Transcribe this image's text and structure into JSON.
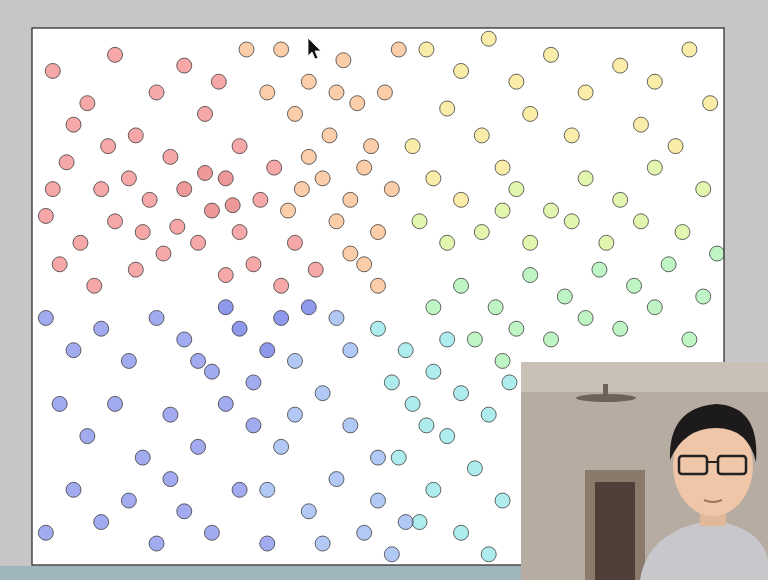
{
  "chart_data": {
    "type": "scatter",
    "marker": "circle",
    "grid": false,
    "tick_labels": false,
    "xlim": [
      0,
      100
    ],
    "ylim": [
      0,
      100
    ],
    "x": [
      3,
      8,
      12,
      15,
      5,
      10,
      18,
      22,
      25,
      20,
      14,
      2,
      7,
      12,
      17,
      22,
      26,
      28,
      30,
      24,
      19,
      15,
      9,
      4,
      30,
      33,
      35,
      32,
      28,
      38,
      36,
      6,
      11,
      27,
      3,
      21,
      25,
      29,
      16,
      41,
      36,
      40,
      45,
      38,
      43,
      47,
      34,
      49,
      42,
      46,
      50,
      44,
      48,
      52,
      40,
      37,
      51,
      53,
      31,
      46,
      50,
      39,
      44,
      48,
      57,
      62,
      66,
      70,
      75,
      80,
      85,
      90,
      95,
      98,
      60,
      65,
      72,
      78,
      55,
      68,
      58,
      62,
      88,
      93,
      70,
      75,
      80,
      85,
      90,
      97,
      65,
      72,
      78,
      83,
      88,
      60,
      56,
      94,
      68,
      62,
      67,
      72,
      77,
      82,
      87,
      92,
      97,
      70,
      75,
      80,
      85,
      90,
      95,
      64,
      58,
      99,
      68,
      50,
      54,
      58,
      62,
      66,
      60,
      55,
      52,
      64,
      68,
      58,
      62,
      66,
      56,
      60,
      69,
      53,
      57,
      38,
      42,
      46,
      50,
      44,
      40,
      48,
      52,
      36,
      42,
      46,
      38,
      50,
      54,
      34,
      44,
      2,
      6,
      10,
      14,
      18,
      22,
      26,
      30,
      34,
      28,
      36,
      40,
      4,
      8,
      12,
      16,
      20,
      24,
      28,
      32,
      6,
      10,
      14,
      18,
      22,
      26,
      30,
      34,
      2,
      20,
      24,
      32
    ],
    "values": [
      92,
      86,
      95,
      80,
      75,
      70,
      88,
      93,
      84,
      76,
      72,
      65,
      60,
      64,
      68,
      70,
      66,
      72,
      78,
      60,
      58,
      55,
      52,
      56,
      62,
      68,
      74,
      56,
      54,
      60,
      52,
      82,
      78,
      90,
      70,
      63,
      73,
      67,
      62,
      55,
      96,
      90,
      94,
      84,
      80,
      86,
      88,
      78,
      72,
      68,
      62,
      64,
      56,
      70,
      76,
      66,
      88,
      96,
      96,
      58,
      52,
      70,
      88,
      74,
      96,
      92,
      98,
      90,
      95,
      88,
      93,
      90,
      96,
      86,
      85,
      80,
      84,
      80,
      78,
      74,
      72,
      68,
      82,
      78,
      70,
      66,
      72,
      68,
      74,
      70,
      62,
      60,
      64,
      60,
      64,
      60,
      64,
      62,
      66,
      52,
      48,
      54,
      50,
      55,
      52,
      56,
      50,
      44,
      42,
      46,
      44,
      48,
      42,
      42,
      48,
      58,
      38,
      44,
      40,
      36,
      32,
      28,
      24,
      30,
      34,
      18,
      12,
      14,
      6,
      2,
      8,
      42,
      34,
      20,
      26,
      38,
      32,
      26,
      20,
      16,
      10,
      6,
      2,
      22,
      4,
      40,
      28,
      12,
      8,
      14,
      46,
      46,
      40,
      44,
      38,
      46,
      42,
      36,
      44,
      40,
      48,
      46,
      48,
      30,
      24,
      30,
      20,
      28,
      22,
      30,
      26,
      14,
      8,
      12,
      4,
      10,
      6,
      14,
      4,
      6,
      16,
      38,
      34
    ],
    "colors": [
      "#f07272",
      "#f07272",
      "#f07272",
      "#f07272",
      "#f07272",
      "#f07272",
      "#f07272",
      "#f07272",
      "#f07272",
      "#f07272",
      "#f07272",
      "#f07272",
      "#f07272",
      "#f07272",
      "#f07272",
      "#e45a5a",
      "#e45a5a",
      "#e45a5a",
      "#f07272",
      "#f07272",
      "#f07272",
      "#f07272",
      "#f07272",
      "#f07272",
      "#f07272",
      "#f07272",
      "#f07272",
      "#f07272",
      "#f07272",
      "#f07272",
      "#f07272",
      "#f07272",
      "#f07272",
      "#f07272",
      "#f07272",
      "#f07272",
      "#e45a5a",
      "#e45a5a",
      "#f07272",
      "#f07272",
      "#f8ae74",
      "#f8ae74",
      "#f8ae74",
      "#f8ae74",
      "#f8ae74",
      "#f8ae74",
      "#f8ae74",
      "#f8ae74",
      "#f8ae74",
      "#f8ae74",
      "#f8ae74",
      "#f8ae74",
      "#f8ae74",
      "#f8ae74",
      "#f8ae74",
      "#f8ae74",
      "#f8ae74",
      "#f8ae74",
      "#f8ae74",
      "#f8ae74",
      "#f8ae74",
      "#f8ae74",
      "#f8ae74",
      "#f8ae74",
      "#f6e274",
      "#f6e274",
      "#f6e274",
      "#f6e274",
      "#f6e274",
      "#f6e274",
      "#f6e274",
      "#f6e274",
      "#f6e274",
      "#f6e274",
      "#f6e274",
      "#f6e274",
      "#f6e274",
      "#f6e274",
      "#f6e274",
      "#f6e274",
      "#f6e274",
      "#f6e274",
      "#f6e274",
      "#f6e274",
      "#d2f07e",
      "#d2f07e",
      "#d2f07e",
      "#d2f07e",
      "#d2f07e",
      "#d2f07e",
      "#d2f07e",
      "#d2f07e",
      "#d2f07e",
      "#d2f07e",
      "#d2f07e",
      "#d2f07e",
      "#d2f07e",
      "#d2f07e",
      "#d2f07e",
      "#98eea2",
      "#98eea2",
      "#98eea2",
      "#98eea2",
      "#98eea2",
      "#98eea2",
      "#98eea2",
      "#98eea2",
      "#98eea2",
      "#98eea2",
      "#98eea2",
      "#98eea2",
      "#98eea2",
      "#98eea2",
      "#98eea2",
      "#98eea2",
      "#98eea2",
      "#98eea2",
      "#7ee0e4",
      "#7ee0e4",
      "#7ee0e4",
      "#7ee0e4",
      "#7ee0e4",
      "#7ee0e4",
      "#7ee0e4",
      "#7ee0e4",
      "#7ee0e4",
      "#7ee0e4",
      "#7ee0e4",
      "#7ee0e4",
      "#7ee0e4",
      "#7ee0e4",
      "#7ee0e4",
      "#7ee0e4",
      "#7ee0e4",
      "#7ee0e4",
      "#82a8f0",
      "#82a8f0",
      "#82a8f0",
      "#82a8f0",
      "#82a8f0",
      "#82a8f0",
      "#82a8f0",
      "#82a8f0",
      "#82a8f0",
      "#82a8f0",
      "#82a8f0",
      "#82a8f0",
      "#82a8f0",
      "#82a8f0",
      "#82a8f0",
      "#82a8f0",
      "#6a78e6",
      "#6a78e6",
      "#6a78e6",
      "#6a78e6",
      "#6a78e6",
      "#6a78e6",
      "#6a78e6",
      "#4a5ae0",
      "#4a5ae0",
      "#4a5ae0",
      "#4a5ae0",
      "#4a5ae0",
      "#6a78e6",
      "#6a78e6",
      "#6a78e6",
      "#6a78e6",
      "#6a78e6",
      "#6a78e6",
      "#6a78e6",
      "#6a78e6",
      "#6a78e6",
      "#6a78e6",
      "#6a78e6",
      "#6a78e6",
      "#6a78e6",
      "#6a78e6",
      "#6a78e6",
      "#6a78e6",
      "#6a78e6",
      "#6a78e6",
      "#6a78e6",
      "#6a78e6"
    ]
  }
}
